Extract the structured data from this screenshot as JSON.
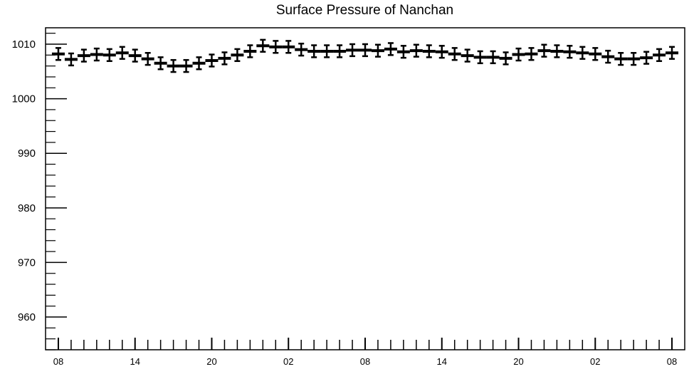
{
  "chart_data": {
    "type": "scatter",
    "title": "Surface Pressure of Nanchan",
    "xlabel": "",
    "ylabel": "",
    "ylim": [
      954,
      1013
    ],
    "yticks": [
      960,
      970,
      980,
      990,
      1000,
      1010
    ],
    "ytick_labels": [
      "960",
      "970",
      "980",
      "990",
      "1000",
      "1010"
    ],
    "x_hours": [
      0,
      1,
      2,
      3,
      4,
      5,
      6,
      7,
      8,
      9,
      10,
      11,
      12,
      13,
      14,
      15,
      16,
      17,
      18,
      19,
      20,
      21,
      22,
      23,
      24,
      25,
      26,
      27,
      28,
      29,
      30,
      31,
      32,
      33,
      34,
      35,
      36,
      37,
      38,
      39,
      40,
      41,
      42,
      43,
      44,
      45,
      46,
      47,
      48
    ],
    "xlim_hours": [
      -1,
      49
    ],
    "xticks_hours": [
      0,
      6,
      12,
      18,
      24,
      30,
      36,
      42,
      48
    ],
    "xtick_labels": [
      "08",
      "14",
      "20",
      "02",
      "08",
      "14",
      "20",
      "02",
      "08"
    ],
    "series": [
      {
        "values": [
          1008.2,
          1007.2,
          1007.9,
          1008.1,
          1008.0,
          1008.4,
          1007.9,
          1007.3,
          1006.5,
          1006.0,
          1006.0,
          1006.5,
          1007.0,
          1007.4,
          1008.0,
          1008.7,
          1009.7,
          1009.5,
          1009.5,
          1009.0,
          1008.7,
          1008.7,
          1008.7,
          1008.9,
          1008.9,
          1008.8,
          1009.1,
          1008.6,
          1008.8,
          1008.7,
          1008.6,
          1008.2,
          1007.9,
          1007.6,
          1007.6,
          1007.4,
          1008.1,
          1008.2,
          1008.8,
          1008.7,
          1008.6,
          1008.4,
          1008.2,
          1007.7,
          1007.3,
          1007.3,
          1007.5,
          1008.0,
          1008.4
        ],
        "error": 1.1
      }
    ],
    "grid": false
  }
}
